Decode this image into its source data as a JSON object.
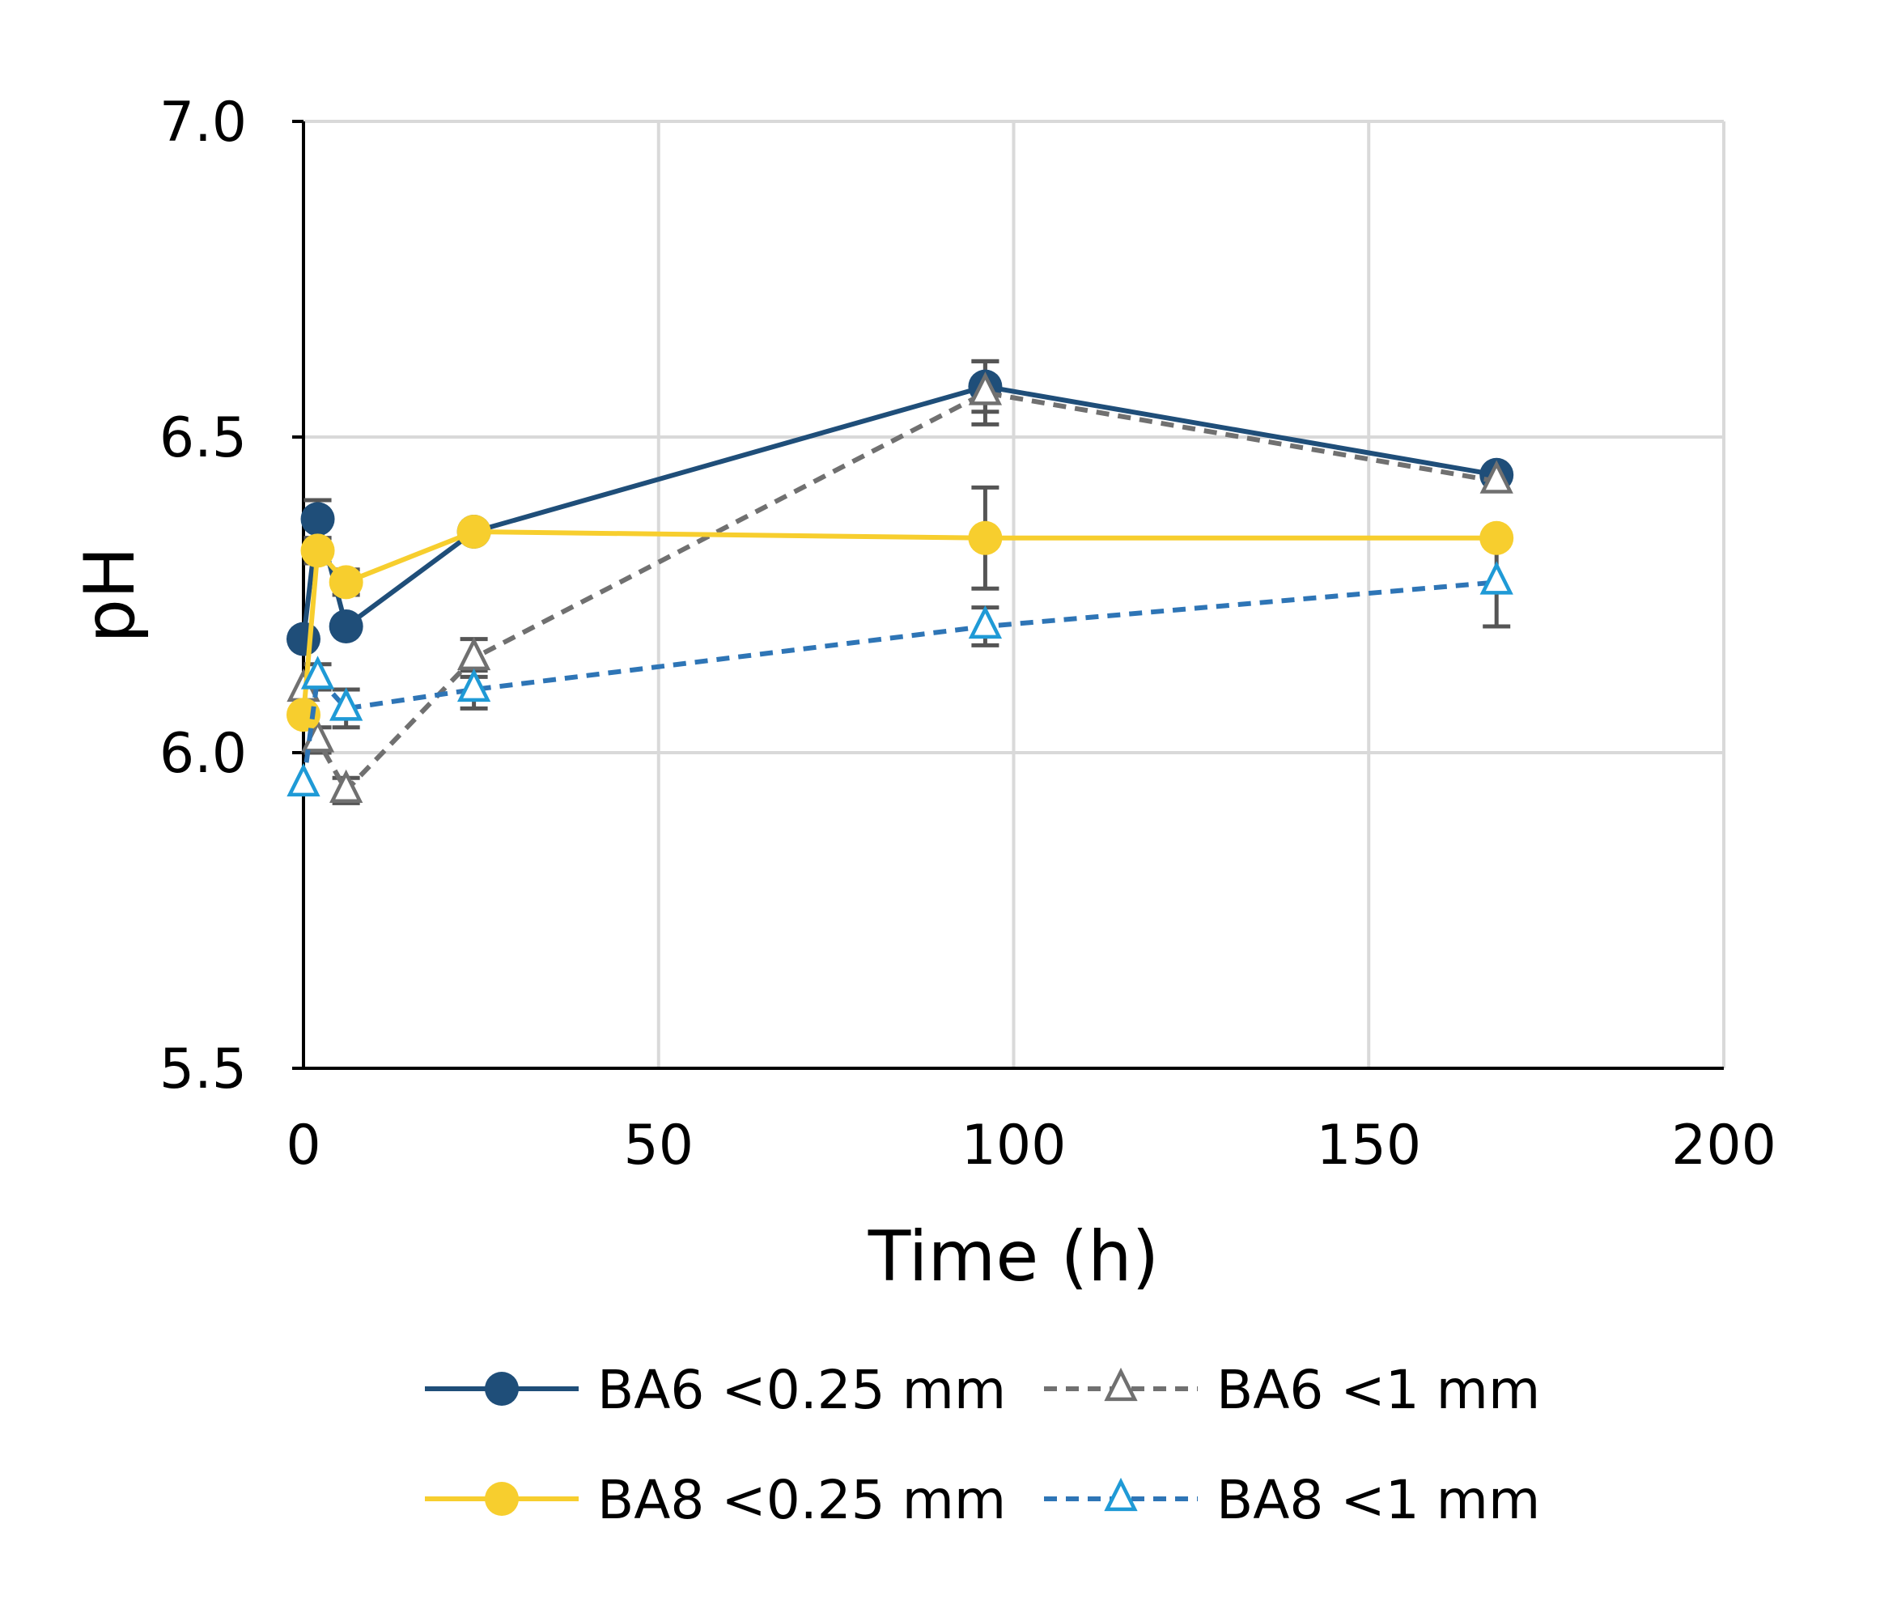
{
  "chart_data": {
    "type": "line",
    "title": "",
    "xlabel": "Time (h)",
    "ylabel": "pH",
    "xlim": [
      0,
      200
    ],
    "ylim": [
      5.5,
      7.0
    ],
    "xticks": [
      0,
      50,
      100,
      150,
      200
    ],
    "xtick_labels": [
      "0",
      "50",
      "100",
      "150",
      "200"
    ],
    "yticks": [
      5.5,
      6.0,
      6.5,
      7.0
    ],
    "ytick_labels": [
      "5.5",
      "6.0",
      "6.5",
      "7.0"
    ],
    "grid": true,
    "legend_position": "bottom",
    "series": [
      {
        "name": "BA6 <0.25 mm",
        "color": "#1f4e79",
        "line_style": "solid",
        "marker": "filled-circle",
        "points": [
          {
            "x": 0,
            "y": 6.18,
            "err": 0.0
          },
          {
            "x": 2,
            "y": 6.37,
            "err": 0.03
          },
          {
            "x": 6,
            "y": 6.2,
            "err": 0.0
          },
          {
            "x": 24,
            "y": 6.35,
            "err": 0.0
          },
          {
            "x": 96,
            "y": 6.58,
            "err": 0.04
          },
          {
            "x": 168,
            "y": 6.44,
            "err": 0.0
          }
        ]
      },
      {
        "name": "BA6 <1 mm",
        "color": "#707070",
        "line_style": "dashed",
        "marker": "open-triangle",
        "points": [
          {
            "x": 0,
            "y": 6.1,
            "err": 0.0
          },
          {
            "x": 2,
            "y": 6.02,
            "err": 0.02
          },
          {
            "x": 6,
            "y": 5.94,
            "err": 0.02
          },
          {
            "x": 24,
            "y": 6.15,
            "err": 0.03
          },
          {
            "x": 96,
            "y": 6.57,
            "err": 0.05
          },
          {
            "x": 168,
            "y": 6.43,
            "err": 0.0
          }
        ]
      },
      {
        "name": "BA8 <0.25 mm",
        "color": "#f7ce2e",
        "line_style": "solid",
        "marker": "filled-circle",
        "points": [
          {
            "x": 0,
            "y": 6.06,
            "err": 0.0
          },
          {
            "x": 2,
            "y": 6.32,
            "err": 0.02
          },
          {
            "x": 6,
            "y": 6.27,
            "err": 0.02
          },
          {
            "x": 24,
            "y": 6.35,
            "err": 0.0
          },
          {
            "x": 96,
            "y": 6.34,
            "err": 0.08
          },
          {
            "x": 168,
            "y": 6.34,
            "err": 0.0
          }
        ]
      },
      {
        "name": "BA8 <1 mm",
        "color": "#2e75b6",
        "marker_color": "#1f9ad6",
        "line_style": "dashed",
        "marker": "open-triangle",
        "points": [
          {
            "x": 0,
            "y": 5.95,
            "err": 0.0
          },
          {
            "x": 2,
            "y": 6.12,
            "err": 0.02
          },
          {
            "x": 6,
            "y": 6.07,
            "err": 0.03
          },
          {
            "x": 24,
            "y": 6.1,
            "err": 0.03
          },
          {
            "x": 96,
            "y": 6.2,
            "err": 0.03
          },
          {
            "x": 168,
            "y": 6.27,
            "err": 0.07
          }
        ]
      }
    ]
  }
}
